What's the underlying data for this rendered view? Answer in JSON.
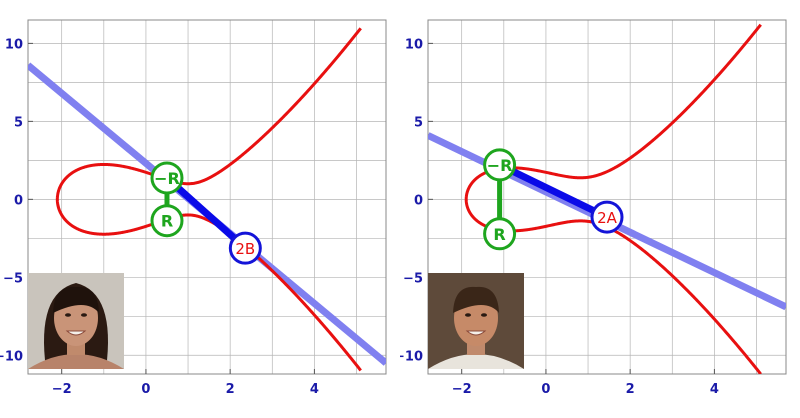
{
  "colors": {
    "axis_label": "#1a1aa8",
    "grid": "#b5b5b5",
    "curve": "#e81010",
    "tangent_line": "#8080f0",
    "segment": "#0a0ae8",
    "point_green": "#1ea51e",
    "point_blue": "#1414d8",
    "label_red": "#e81010"
  },
  "portraits": [
    {
      "icon": "woman-portrait-photo"
    },
    {
      "icon": "man-portrait-photo"
    }
  ],
  "chart_data": [
    {
      "type": "line",
      "title": "",
      "xlabel": "",
      "ylabel": "",
      "xlim": [
        -2.8,
        5.7
      ],
      "ylim": [
        -11.2,
        11.5
      ],
      "xticks": [
        -2,
        0,
        2,
        4
      ],
      "xtick_labels": [
        "−2",
        "0",
        "2",
        "4"
      ],
      "yticks": [
        -10,
        -5,
        0,
        5,
        10
      ],
      "ytick_labels": [
        "−10",
        "−5",
        "0",
        "5",
        "10"
      ],
      "grid": true,
      "curve": {
        "a": -3,
        "b": 3,
        "x_range": [
          -2.1,
          5.1
        ]
      },
      "series": [
        {
          "x": [
            -2.8,
            5.7
          ],
          "y": [
            8.6,
            -10.5
          ]
        }
      ],
      "points": [
        {
          "x": 0.5,
          "y": 1.37,
          "label": "−R",
          "style": "green"
        },
        {
          "x": 0.5,
          "y": -1.37,
          "label": "R",
          "style": "green"
        },
        {
          "x": 2.36,
          "y": -3.13,
          "label": "2B",
          "style": "blue"
        }
      ]
    },
    {
      "type": "line",
      "title": "",
      "xlabel": "",
      "ylabel": "",
      "xlim": [
        -2.8,
        5.7
      ],
      "ylim": [
        -11.2,
        11.5
      ],
      "xticks": [
        -2,
        0,
        2,
        4
      ],
      "xtick_labels": [
        "−2",
        "0",
        "2",
        "4"
      ],
      "yticks": [
        -10,
        -5,
        0,
        5,
        10
      ],
      "ytick_labels": [
        "−10",
        "−5",
        "0",
        "5",
        "10"
      ],
      "grid": true,
      "curve": {
        "a": -2,
        "b": 3,
        "x_range": [
          -2.1,
          5.1
        ]
      },
      "series": [
        {
          "x": [
            -2.8,
            5.7
          ],
          "y": [
            4.1,
            -6.9
          ]
        }
      ],
      "points": [
        {
          "x": -1.1,
          "y": 2.21,
          "label": "−R",
          "style": "green"
        },
        {
          "x": -1.1,
          "y": -2.21,
          "label": "R",
          "style": "green"
        },
        {
          "x": 1.45,
          "y": -1.14,
          "label": "2A",
          "style": "blue"
        }
      ]
    }
  ]
}
